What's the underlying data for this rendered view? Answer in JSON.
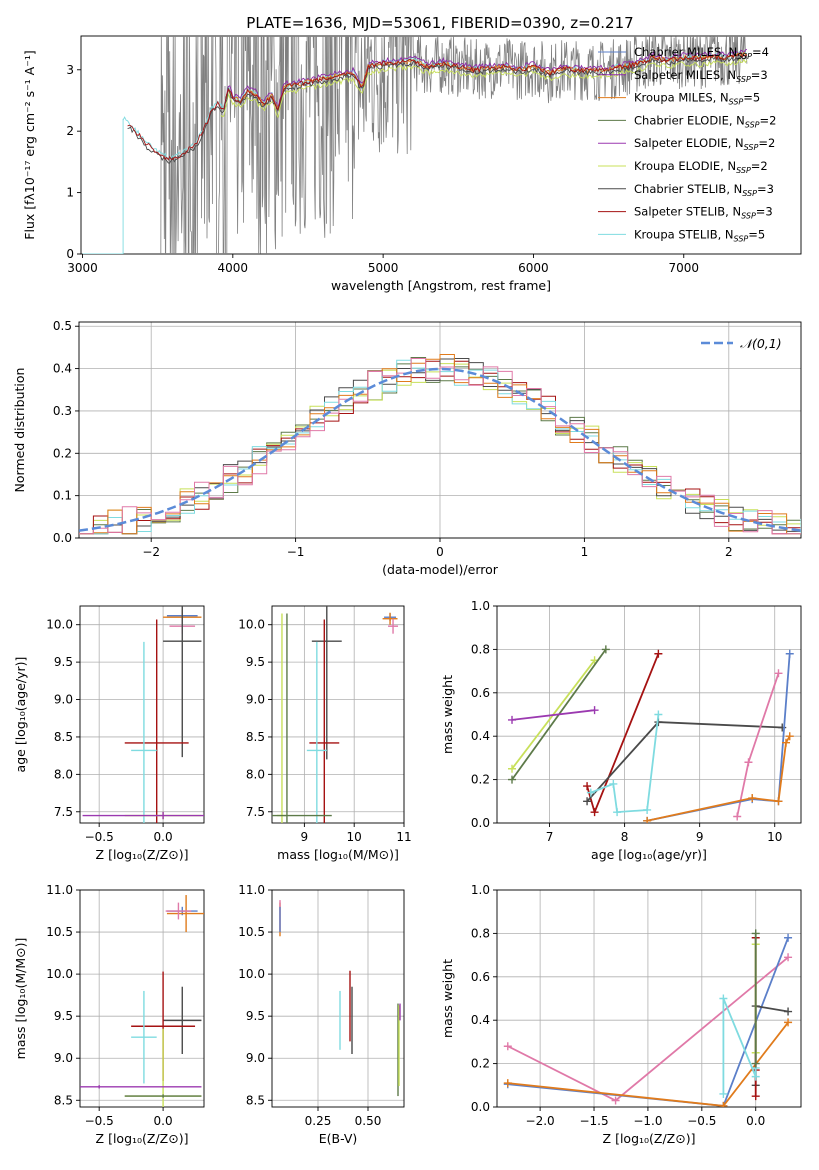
{
  "figure_title": "PLATE=1636, MJD=53061, FIBERID=0390, z=0.217",
  "colors": {
    "chabrier_miles": "#5b7fc9",
    "salpeter_miles": "#8e2aa8",
    "kroupa_miles": "#e07b1c",
    "chabrier_elodie": "#5d7a49",
    "salpeter_elodie": "#9b39b0",
    "kroupa_elodie": "#c8e05a",
    "chabrier_stelib": "#4a4a4a",
    "salpeter_stelib": "#a51212",
    "kroupa_stelib": "#7fdbe0",
    "spectrum": "#808080",
    "normal": "#5b8bd8",
    "pink": "#e079a8"
  },
  "chart_data": [
    {
      "id": "spectrum",
      "type": "line",
      "title": "PLATE=1636, MJD=53061, FIBERID=0390, z=0.217",
      "xlabel": "wavelength [Angstrom, rest frame]",
      "ylabel": "Flux [fλ10⁻¹⁷ erg cm⁻² s⁻¹ A⁻¹]",
      "xlim": [
        2990,
        7780
      ],
      "ylim": [
        0,
        3.55
      ],
      "xticks": [
        3000,
        4000,
        5000,
        6000,
        7000
      ],
      "yticks": [
        0,
        1,
        2,
        3
      ],
      "legend_position": "top-right",
      "legend": [
        {
          "label": "Chabrier MILES, N",
          "sub": "SSP",
          "tail": "=4",
          "color": "#5b7fc9"
        },
        {
          "label": "Salpeter MILES, N",
          "sub": "SSP",
          "tail": "=3",
          "color": "#8e2aa8"
        },
        {
          "label": "Kroupa MILES, N",
          "sub": "SSP",
          "tail": "=5",
          "color": "#e07b1c"
        },
        {
          "label": "Chabrier ELODIE, N",
          "sub": "SSP",
          "tail": "=2",
          "color": "#5d7a49"
        },
        {
          "label": "Salpeter ELODIE, N",
          "sub": "SSP",
          "tail": "=2",
          "color": "#9b39b0"
        },
        {
          "label": "Kroupa ELODIE, N",
          "sub": "SSP",
          "tail": "=2",
          "color": "#c8e05a"
        },
        {
          "label": "Chabrier STELIB, N",
          "sub": "SSP",
          "tail": "=3",
          "color": "#4a4a4a"
        },
        {
          "label": "Salpeter STELIB, N",
          "sub": "SSP",
          "tail": "=3",
          "color": "#a51212"
        },
        {
          "label": "Kroupa STELIB, N",
          "sub": "SSP",
          "tail": "=5",
          "color": "#7fdbe0"
        }
      ],
      "model": {
        "x": [
          3270,
          3290,
          3330,
          3370,
          3420,
          3480,
          3530,
          3580,
          3640,
          3700,
          3760,
          3820,
          3860,
          3900,
          3940,
          3970,
          4000,
          4050,
          4100,
          4150,
          4200,
          4260,
          4300,
          4340,
          4400,
          4500,
          4600,
          4700,
          4800,
          4860,
          4900,
          5000,
          5100,
          5200,
          5300,
          5400,
          5500,
          5600,
          5700,
          5800,
          5900,
          6000,
          6100,
          6200,
          6300,
          6400,
          6500,
          6600,
          6700,
          6800,
          6900,
          7000,
          7100,
          7200,
          7300,
          7400
        ],
        "y": [
          2.2,
          2.15,
          2.05,
          1.95,
          1.8,
          1.68,
          1.6,
          1.55,
          1.6,
          1.7,
          1.8,
          2.1,
          2.35,
          2.45,
          2.35,
          2.7,
          2.55,
          2.5,
          2.65,
          2.6,
          2.45,
          2.58,
          2.35,
          2.72,
          2.75,
          2.8,
          2.85,
          2.9,
          2.95,
          2.7,
          3.05,
          3.1,
          3.12,
          3.15,
          3.05,
          3.1,
          3.05,
          3.0,
          3.02,
          3.05,
          3.0,
          3.05,
          2.95,
          3.02,
          3.0,
          2.98,
          3.0,
          3.05,
          3.1,
          3.2,
          3.15,
          3.2,
          3.18,
          3.22,
          3.2,
          3.25
        ]
      }
    },
    {
      "id": "residuals",
      "type": "line",
      "xlabel": "(data-model)/error",
      "ylabel": "Normed distribution",
      "xlim": [
        -2.5,
        2.5
      ],
      "ylim": [
        0,
        0.51
      ],
      "xticks": [
        -2,
        -1,
        0,
        1,
        2
      ],
      "xtick_labels": [
        "−2",
        "−1",
        "0",
        "1",
        "2"
      ],
      "yticks": [
        0.0,
        0.1,
        0.2,
        0.3,
        0.4,
        0.5
      ],
      "ytick_labels": [
        "0.0",
        "0.1",
        "0.2",
        "0.3",
        "0.4",
        "0.5"
      ],
      "grid": true,
      "legend_label": "𝒩(0,1)",
      "legend_position": "top-right",
      "normal_mean": 0,
      "normal_sigma": 1
    },
    {
      "id": "age-vs-Z",
      "type": "scatter",
      "xlabel": "Z [log₁₀(Z/Z⊙)]",
      "ylabel": "age  [log₁₀(age/yr)]",
      "xlim": [
        -0.65,
        0.32
      ],
      "ylim": [
        7.35,
        10.25
      ],
      "xticks": [
        -0.5,
        0.0
      ],
      "xtick_labels": [
        "−0.5",
        "0.0"
      ],
      "yticks": [
        7.5,
        8.0,
        8.5,
        9.0,
        9.5,
        10.0
      ],
      "ytick_labels": [
        "7.5",
        "8.0",
        "8.5",
        "9.0",
        "9.5",
        "10.0"
      ],
      "grid": true,
      "points": [
        {
          "x": 0.15,
          "y": 10.12,
          "xerr": 0.12,
          "yerr": 0.05,
          "color": "#5b7fc9"
        },
        {
          "x": 0.15,
          "y": 10.1,
          "xerr": 0.15,
          "yerr": 0.1,
          "color": "#e07b1c"
        },
        {
          "x": 0.15,
          "y": 9.98,
          "xerr": 0.1,
          "yerr": 0.1,
          "color": "#e079a8"
        },
        {
          "x": 0.15,
          "y": 9.78,
          "xerr": 0.15,
          "yerr": 1.55,
          "color": "#4a4a4a"
        },
        {
          "x": -0.05,
          "y": 8.42,
          "xerr": 0.25,
          "yerr": 1.65,
          "color": "#a51212"
        },
        {
          "x": -0.15,
          "y": 8.32,
          "xerr": 0.1,
          "yerr": 1.45,
          "color": "#7fdbe0"
        },
        {
          "x": 0.0,
          "y": 7.45,
          "xerr": 0.3,
          "yerr": 0.05,
          "color": "#c8e05a"
        },
        {
          "x": 0.0,
          "y": 7.45,
          "xerr": 0.63,
          "yerr": 0.05,
          "color": "#9b39b0"
        }
      ]
    },
    {
      "id": "age-vs-mass",
      "type": "scatter",
      "xlabel": "mass [log₁₀(M/M⊙)]",
      "ylabel": "",
      "xlim": [
        8.35,
        11.0
      ],
      "ylim": [
        7.35,
        10.25
      ],
      "xticks": [
        9,
        10,
        11
      ],
      "xtick_labels": [
        "9",
        "10",
        "11"
      ],
      "yticks": [
        7.5,
        8.0,
        8.5,
        9.0,
        9.5,
        10.0
      ],
      "ytick_labels": [
        "7.5",
        "8.0",
        "8.5",
        "9.0",
        "9.5",
        "10.0"
      ],
      "grid": true,
      "points": [
        {
          "x": 10.72,
          "y": 10.1,
          "xerr": 0.12,
          "yerr": 0.05,
          "color": "#5b7fc9"
        },
        {
          "x": 10.72,
          "y": 10.08,
          "xerr": 0.15,
          "yerr": 0.08,
          "color": "#e07b1c"
        },
        {
          "x": 10.78,
          "y": 9.98,
          "xerr": 0.1,
          "yerr": 0.1,
          "color": "#e079a8"
        },
        {
          "x": 9.45,
          "y": 9.78,
          "xerr": 0.3,
          "yerr": 1.58,
          "color": "#4a4a4a"
        },
        {
          "x": 9.4,
          "y": 8.42,
          "xerr": 0.3,
          "yerr": 1.65,
          "color": "#a51212"
        },
        {
          "x": 9.25,
          "y": 8.32,
          "xerr": 0.2,
          "yerr": 1.45,
          "color": "#7fdbe0"
        },
        {
          "x": 8.55,
          "y": 7.45,
          "xerr": 0.1,
          "yerr": 2.7,
          "color": "#c8e05a"
        },
        {
          "x": 8.65,
          "y": 7.45,
          "xerr": 0.9,
          "yerr": 2.7,
          "color": "#5d7a49"
        }
      ]
    },
    {
      "id": "weight-vs-age",
      "type": "line",
      "xlabel": "age  [log₁₀(age/yr)]",
      "ylabel": "mass weight",
      "xlim": [
        6.3,
        10.35
      ],
      "ylim": [
        0,
        1.0
      ],
      "xticks": [
        7,
        8,
        9,
        10
      ],
      "xtick_labels": [
        "7",
        "8",
        "9",
        "10"
      ],
      "yticks": [
        0.0,
        0.2,
        0.4,
        0.6,
        0.8,
        1.0
      ],
      "ytick_labels": [
        "0.0",
        "0.2",
        "0.4",
        "0.6",
        "0.8",
        "1.0"
      ],
      "grid": true,
      "series": [
        {
          "color": "#c8e05a",
          "x": [
            6.5,
            7.6
          ],
          "y": [
            0.25,
            0.75
          ]
        },
        {
          "color": "#5d7a49",
          "x": [
            6.5,
            7.75
          ],
          "y": [
            0.2,
            0.8
          ]
        },
        {
          "color": "#9b39b0",
          "x": [
            6.5,
            7.6
          ],
          "y": [
            0.475,
            0.52
          ]
        },
        {
          "color": "#a51212",
          "x": [
            7.5,
            7.6,
            8.45
          ],
          "y": [
            0.17,
            0.05,
            0.78
          ]
        },
        {
          "color": "#4a4a4a",
          "x": [
            7.5,
            8.45,
            10.1
          ],
          "y": [
            0.1,
            0.465,
            0.44
          ]
        },
        {
          "color": "#7fdbe0",
          "x": [
            7.55,
            7.85,
            7.9,
            8.3,
            8.45
          ],
          "y": [
            0.14,
            0.18,
            0.05,
            0.06,
            0.5
          ]
        },
        {
          "color": "#e079a8",
          "x": [
            9.5,
            9.65,
            10.05
          ],
          "y": [
            0.03,
            0.28,
            0.69
          ]
        },
        {
          "color": "#5b7fc9",
          "x": [
            8.3,
            9.7,
            10.05,
            10.2
          ],
          "y": [
            0.01,
            0.11,
            0.1,
            0.78
          ]
        },
        {
          "color": "#e07b1c",
          "x": [
            8.3,
            9.7,
            10.05,
            10.15,
            10.2
          ],
          "y": [
            0.01,
            0.115,
            0.1,
            0.37,
            0.4
          ]
        }
      ]
    },
    {
      "id": "mass-vs-Z",
      "type": "scatter",
      "xlabel": "Z [log₁₀(Z/Z⊙)]",
      "ylabel": "mass [log₁₀(M/M⊙)]",
      "xlim": [
        -0.65,
        0.32
      ],
      "ylim": [
        8.42,
        11.0
      ],
      "xticks": [
        -0.5,
        0.0
      ],
      "xtick_labels": [
        "−0.5",
        "0.0"
      ],
      "yticks": [
        8.5,
        9.0,
        9.5,
        10.0,
        10.5,
        11.0
      ],
      "ytick_labels": [
        "8.5",
        "9.0",
        "9.5",
        "10.0",
        "10.5",
        "11.0"
      ],
      "grid": true,
      "points": [
        {
          "x": 0.15,
          "y": 10.75,
          "xerr": 0.12,
          "yerr": 0.05,
          "color": "#5b7fc9"
        },
        {
          "x": 0.18,
          "y": 10.72,
          "xerr": 0.15,
          "yerr": 0.22,
          "color": "#e07b1c"
        },
        {
          "x": 0.12,
          "y": 10.75,
          "xerr": 0.1,
          "yerr": 0.1,
          "color": "#e079a8"
        },
        {
          "x": 0.15,
          "y": 9.45,
          "xerr": 0.15,
          "yerr": 0.4,
          "color": "#4a4a4a"
        },
        {
          "x": 0.0,
          "y": 9.38,
          "xerr": 0.25,
          "yerr": 0.65,
          "color": "#a51212"
        },
        {
          "x": -0.15,
          "y": 9.25,
          "xerr": 0.1,
          "yerr": 0.55,
          "color": "#7fdbe0"
        },
        {
          "x": 0.0,
          "y": 8.55,
          "xerr": 0.3,
          "yerr": 0.8,
          "color": "#c8e05a"
        },
        {
          "x": -0.5,
          "y": 8.66,
          "xerr": 0.8,
          "yerr": 0.02,
          "color": "#9b39b0"
        },
        {
          "x": 0.0,
          "y": 8.55,
          "xerr": 0.3,
          "yerr": 0.02,
          "color": "#5d7a49"
        }
      ]
    },
    {
      "id": "mass-vs-EBV",
      "type": "scatter",
      "xlabel": "E(B-V)",
      "ylabel": "",
      "xlim": [
        0.02,
        0.68
      ],
      "ylim": [
        8.42,
        11.0
      ],
      "xticks": [
        0.25,
        0.5
      ],
      "xtick_labels": [
        "0.25",
        "0.50"
      ],
      "yticks": [
        8.5,
        9.0,
        9.5,
        10.0,
        10.5,
        11.0
      ],
      "ytick_labels": [
        "8.5",
        "9.0",
        "9.5",
        "10.0",
        "10.5",
        "11.0"
      ],
      "grid": true,
      "points": [
        {
          "x": 0.06,
          "y": 10.65,
          "xerr": 0,
          "yerr": 0.2,
          "color": "#e07b1c"
        },
        {
          "x": 0.06,
          "y": 10.7,
          "xerr": 0,
          "yerr": 0.18,
          "color": "#e079a8"
        },
        {
          "x": 0.06,
          "y": 10.65,
          "xerr": 0,
          "yerr": 0.15,
          "color": "#5b7fc9"
        },
        {
          "x": 0.36,
          "y": 9.45,
          "xerr": 0,
          "yerr": 0.35,
          "color": "#7fdbe0"
        },
        {
          "x": 0.41,
          "y": 9.62,
          "xerr": 0,
          "yerr": 0.42,
          "color": "#a51212"
        },
        {
          "x": 0.42,
          "y": 9.45,
          "xerr": 0,
          "yerr": 0.4,
          "color": "#4a4a4a"
        },
        {
          "x": 0.65,
          "y": 9.1,
          "xerr": 0,
          "yerr": 0.55,
          "color": "#5d7a49"
        },
        {
          "x": 0.655,
          "y": 9.15,
          "xerr": 0,
          "yerr": 0.48,
          "color": "#c8e05a"
        },
        {
          "x": 0.66,
          "y": 9.55,
          "xerr": 0,
          "yerr": 0.1,
          "color": "#9b39b0"
        }
      ]
    },
    {
      "id": "weight-vs-Z",
      "type": "line",
      "xlabel": "Z [log₁₀(Z/Z⊙)]",
      "ylabel": "mass weight",
      "xlim": [
        -2.4,
        0.42
      ],
      "ylim": [
        0,
        1.0
      ],
      "xticks": [
        -2.0,
        -1.5,
        -1.0,
        -0.5,
        0.0
      ],
      "xtick_labels": [
        "−2.0",
        "−1.5",
        "−1.0",
        "−0.5",
        "0.0"
      ],
      "yticks": [
        0.0,
        0.2,
        0.4,
        0.6,
        0.8,
        1.0
      ],
      "ytick_labels": [
        "0.0",
        "0.2",
        "0.4",
        "0.6",
        "0.8",
        "1.0"
      ],
      "grid": true,
      "series": [
        {
          "color": "#e079a8",
          "x": [
            -2.3,
            -1.3,
            0.3
          ],
          "y": [
            0.28,
            0.03,
            0.69
          ]
        },
        {
          "color": "#5b7fc9",
          "x": [
            -2.3,
            -0.3,
            0.3
          ],
          "y": [
            0.105,
            0.005,
            0.78
          ]
        },
        {
          "color": "#e07b1c",
          "x": [
            -2.3,
            -0.3,
            0.3
          ],
          "y": [
            0.11,
            0.005,
            0.39
          ]
        },
        {
          "color": "#4a4a4a",
          "x": [
            0.0,
            0.0,
            0.3
          ],
          "y": [
            0.1,
            0.465,
            0.44
          ]
        },
        {
          "color": "#a51212",
          "x": [
            0.0,
            0.0,
            0.0
          ],
          "y": [
            0.05,
            0.78,
            0.17
          ]
        },
        {
          "color": "#7fdbe0",
          "x": [
            -0.3,
            -0.3,
            0.0,
            0.0
          ],
          "y": [
            0.06,
            0.5,
            0.14,
            0.18
          ]
        },
        {
          "color": "#c8e05a",
          "x": [
            0.0,
            0.0
          ],
          "y": [
            0.25,
            0.75
          ]
        },
        {
          "color": "#5d7a49",
          "x": [
            0.0,
            0.0
          ],
          "y": [
            0.2,
            0.8
          ]
        }
      ]
    }
  ]
}
